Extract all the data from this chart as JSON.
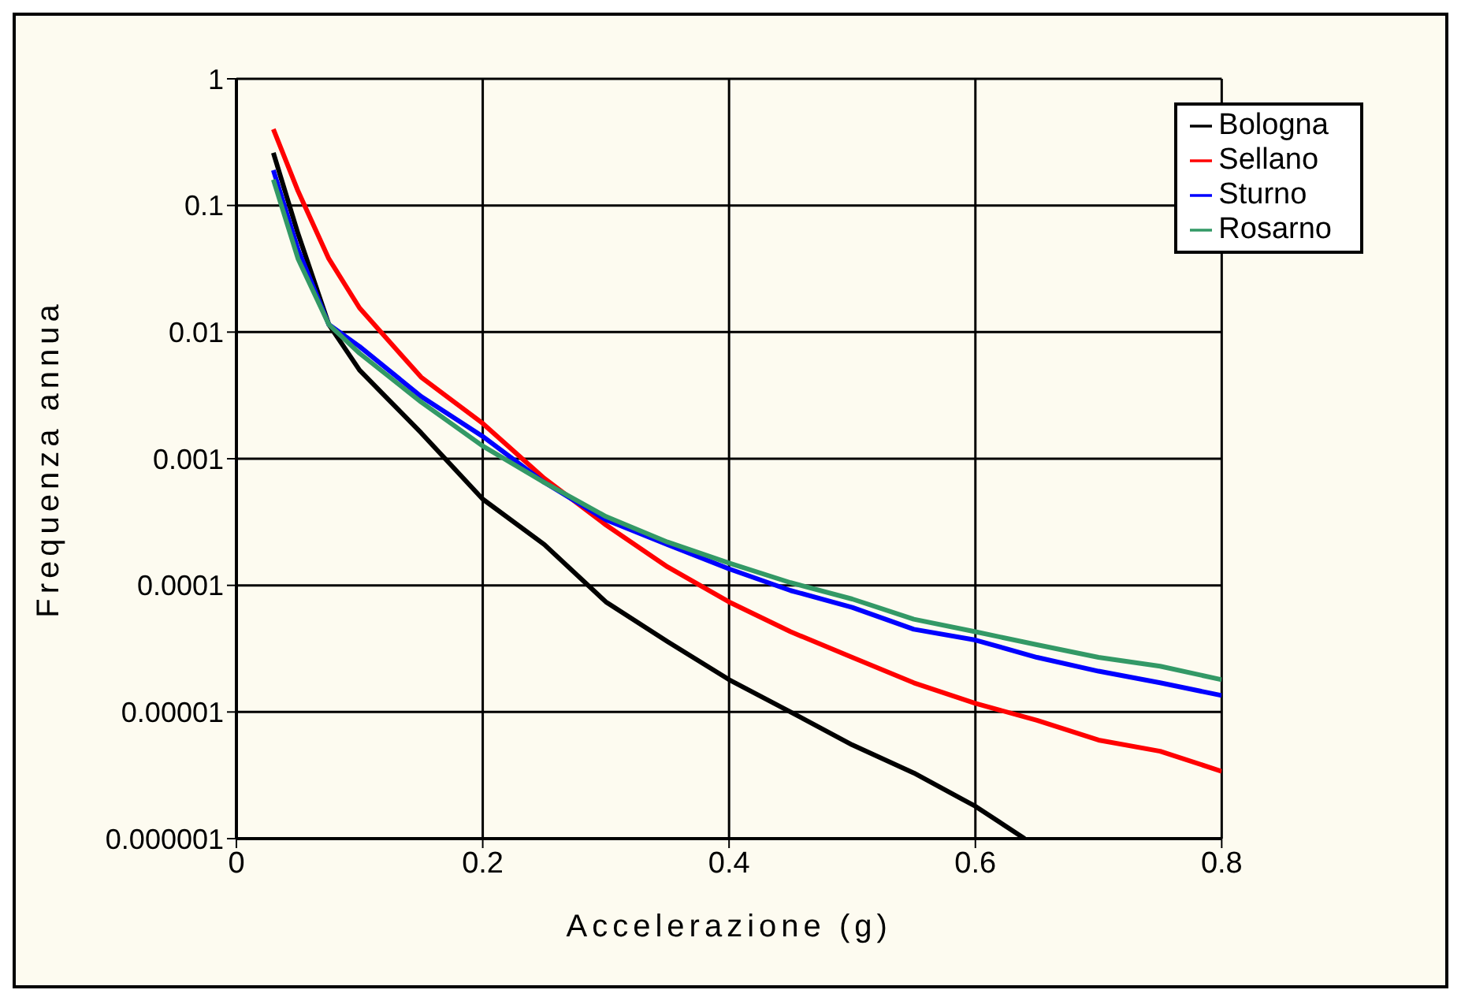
{
  "chart_data": {
    "type": "line",
    "xlabel": "Accelerazione (g)",
    "ylabel": "Frequenza annua",
    "log": "y",
    "xlim": [
      0,
      0.8
    ],
    "xticks": [
      0,
      0.2,
      0.4,
      0.6,
      0.8
    ],
    "ylim": [
      1e-06,
      1
    ],
    "yticks": [
      {
        "value": 1e-06,
        "label": "0.000001"
      },
      {
        "value": 1e-05,
        "label": "0.00001"
      },
      0.0001,
      0.001,
      0.01,
      0.1,
      1
    ],
    "grid": true,
    "legend": "top right",
    "marker": "none",
    "line_style": "solid",
    "series": [
      {
        "name": "Bologna",
        "color": "#000000",
        "x": [
          0.03,
          0.05,
          0.075,
          0.1,
          0.15,
          0.2,
          0.25,
          0.3,
          0.35,
          0.4,
          0.45,
          0.5,
          0.55,
          0.6,
          0.64
        ],
        "values": [
          0.26,
          0.06,
          0.0115,
          0.005,
          0.0016,
          0.00048,
          0.00021,
          7.4e-05,
          3.6e-05,
          1.8e-05,
          1e-05,
          5.5e-06,
          3.3e-06,
          1.8e-06,
          1e-06
        ]
      },
      {
        "name": "Sellano",
        "color": "#ff0000",
        "x": [
          0.03,
          0.05,
          0.075,
          0.1,
          0.15,
          0.2,
          0.25,
          0.3,
          0.35,
          0.4,
          0.45,
          0.5,
          0.55,
          0.6,
          0.65,
          0.7,
          0.75,
          0.8
        ],
        "values": [
          0.4,
          0.13,
          0.038,
          0.0155,
          0.0044,
          0.0019,
          0.0007,
          0.0003,
          0.00014,
          7.4e-05,
          4.3e-05,
          2.7e-05,
          1.7e-05,
          1.17e-05,
          8.6e-06,
          6e-06,
          4.9e-06,
          3.4e-06
        ]
      },
      {
        "name": "Sturno",
        "color": "#0000ff",
        "x": [
          0.03,
          0.05,
          0.075,
          0.1,
          0.15,
          0.2,
          0.25,
          0.3,
          0.35,
          0.4,
          0.45,
          0.5,
          0.55,
          0.6,
          0.65,
          0.7,
          0.75,
          0.8
        ],
        "values": [
          0.19,
          0.045,
          0.0115,
          0.0077,
          0.0031,
          0.0015,
          0.00065,
          0.00033,
          0.00021,
          0.000135,
          9.1e-05,
          6.7e-05,
          4.5e-05,
          3.7e-05,
          2.7e-05,
          2.1e-05,
          1.7e-05,
          1.35e-05
        ]
      },
      {
        "name": "Rosarno",
        "color": "#339966",
        "x": [
          0.03,
          0.05,
          0.075,
          0.1,
          0.15,
          0.2,
          0.25,
          0.3,
          0.35,
          0.4,
          0.45,
          0.5,
          0.55,
          0.6,
          0.65,
          0.7,
          0.75,
          0.8
        ],
        "values": [
          0.16,
          0.038,
          0.0115,
          0.0068,
          0.0028,
          0.00126,
          0.00065,
          0.00035,
          0.00022,
          0.00015,
          0.000105,
          7.8e-05,
          5.4e-05,
          4.3e-05,
          3.4e-05,
          2.7e-05,
          2.3e-05,
          1.8e-05
        ]
      }
    ]
  }
}
